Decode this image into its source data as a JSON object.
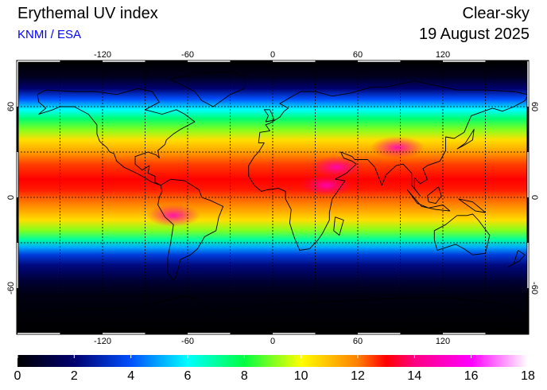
{
  "header": {
    "title": "Erythemal UV index",
    "credit": "KNMI / ESA",
    "condition": "Clear-sky",
    "date": "19 August 2025"
  },
  "map": {
    "projection": "equirectangular",
    "lon_range": [
      -180,
      180
    ],
    "lat_range": [
      -90,
      90
    ],
    "graticule_lon": [
      -150,
      -120,
      -90,
      -60,
      -30,
      0,
      30,
      60,
      90,
      120,
      150
    ],
    "graticule_lat": [
      -60,
      -30,
      0,
      30,
      60
    ],
    "lon_labels": [
      "-120",
      "-60",
      "0",
      "60",
      "120"
    ],
    "lat_labels": [
      "-60",
      "0",
      "60"
    ],
    "zonal_uv_profile": [
      {
        "lat": 90,
        "uv": 0
      },
      {
        "lat": 80,
        "uv": 0.5
      },
      {
        "lat": 72,
        "uv": 2
      },
      {
        "lat": 65,
        "uv": 4
      },
      {
        "lat": 58,
        "uv": 6
      },
      {
        "lat": 52,
        "uv": 7.5
      },
      {
        "lat": 45,
        "uv": 9
      },
      {
        "lat": 38,
        "uv": 10.5
      },
      {
        "lat": 30,
        "uv": 11.5
      },
      {
        "lat": 22,
        "uv": 12.5
      },
      {
        "lat": 12,
        "uv": 13
      },
      {
        "lat": 5,
        "uv": 12.8
      },
      {
        "lat": 0,
        "uv": 12.3
      },
      {
        "lat": -8,
        "uv": 11.5
      },
      {
        "lat": -15,
        "uv": 10.5
      },
      {
        "lat": -22,
        "uv": 9
      },
      {
        "lat": -28,
        "uv": 7
      },
      {
        "lat": -33,
        "uv": 5
      },
      {
        "lat": -38,
        "uv": 3.5
      },
      {
        "lat": -45,
        "uv": 2.2
      },
      {
        "lat": -55,
        "uv": 1
      },
      {
        "lat": -65,
        "uv": 0.3
      },
      {
        "lat": -90,
        "uv": 0
      }
    ],
    "hotspots": [
      {
        "name": "tibet",
        "lon": 88,
        "lat": 33,
        "uv": 16
      },
      {
        "name": "east-africa",
        "lon": 38,
        "lat": 8,
        "uv": 15
      },
      {
        "name": "arabia",
        "lon": 45,
        "lat": 20,
        "uv": 14
      },
      {
        "name": "andes",
        "lon": -70,
        "lat": -12,
        "uv": 14
      }
    ]
  },
  "colorbar": {
    "min": 0,
    "max": 18,
    "labels": [
      "0",
      "2",
      "4",
      "6",
      "8",
      "10",
      "12",
      "14",
      "16",
      "18"
    ],
    "stops": [
      {
        "v": 0,
        "c": "#000000"
      },
      {
        "v": 2,
        "c": "#00006e"
      },
      {
        "v": 4,
        "c": "#0050ff"
      },
      {
        "v": 6,
        "c": "#00ffff"
      },
      {
        "v": 8,
        "c": "#00ff40"
      },
      {
        "v": 10,
        "c": "#ffff00"
      },
      {
        "v": 12,
        "c": "#ff8000"
      },
      {
        "v": 13,
        "c": "#ff0000"
      },
      {
        "v": 14,
        "c": "#ff0080"
      },
      {
        "v": 16,
        "c": "#ff00ff"
      },
      {
        "v": 18,
        "c": "#ffffff"
      }
    ]
  },
  "colors": {
    "credit": "#0000ff",
    "coastline": "#000000",
    "graticule": "#000000"
  }
}
